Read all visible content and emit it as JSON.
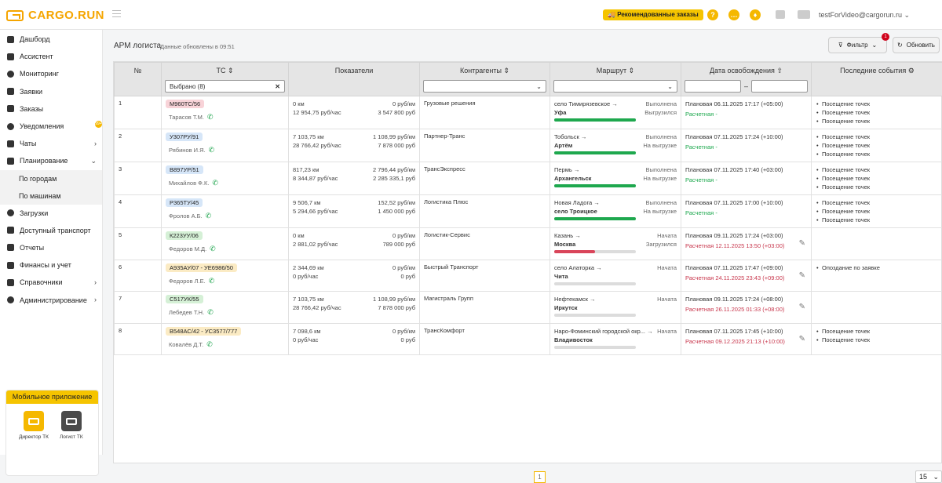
{
  "app": {
    "brand": "CARGO.RUN",
    "recommended_label": "Рекомендованные заказы",
    "user_email": "testForVideo@cargorun.ru"
  },
  "sidebar": {
    "items": [
      {
        "label": "Дашборд",
        "icon": "dashboard-icon"
      },
      {
        "label": "Ассистент",
        "icon": "chart-icon"
      },
      {
        "label": "Мониторинг",
        "icon": "location-pin-icon"
      },
      {
        "label": "Заявки",
        "icon": "truck-icon"
      },
      {
        "label": "Заказы",
        "icon": "ruble-icon"
      },
      {
        "label": "Уведомления",
        "icon": "bell-icon",
        "badge": "99+"
      },
      {
        "label": "Чаты",
        "icon": "chat-icon"
      },
      {
        "label": "Планирование",
        "icon": "calendar-icon"
      }
    ],
    "planning_sub": [
      "По городам",
      "По машинам"
    ],
    "items2": [
      {
        "label": "Загрузки",
        "icon": "cycle-icon"
      },
      {
        "label": "Доступный транспорт",
        "icon": "truck-icon"
      },
      {
        "label": "Отчеты",
        "icon": "report-icon"
      },
      {
        "label": "Финансы и учет",
        "icon": "finance-icon"
      },
      {
        "label": "Справочники",
        "icon": "list-icon"
      },
      {
        "label": "Администрирование",
        "icon": "gear-icon"
      }
    ],
    "mobile_title": "Мобильное приложение",
    "apps": [
      "Директор ТК",
      "Логист ТК"
    ]
  },
  "page": {
    "title": "АРМ логиста",
    "updated": "Данные обновлены в 09:51",
    "filter_label": "Фильтр",
    "filter_badge": "1",
    "refresh_label": "Обновить",
    "current_page": "1",
    "page_size": "15"
  },
  "columns": {
    "num": "№",
    "vehicle": "ТС",
    "metrics": "Показатели",
    "contractors": "Контрагенты",
    "route": "Маршрут",
    "release": "Дата освобождения",
    "events": "Последние события",
    "vehicle_filter": "Выбрано (8)"
  },
  "colors": {
    "accent": "#f5b800",
    "green_bar": "#1ea84e",
    "red_bar": "#d9455a",
    "pink_plate": "#f8d3d8",
    "blue_plate": "#d6e6f8",
    "green_plate": "#d5f0d6",
    "yellow_plate": "#fbebc4"
  },
  "rows": [
    {
      "n": "1",
      "plate": "М960ТС/56",
      "plate_color": "#f8d3d8",
      "driver": "Тарасов Т.М.",
      "km": "0 км",
      "rate": "0 руб/км",
      "perh": "12 954,75 руб/час",
      "sum": "3 547 800 руб",
      "contractor": "Грузовые решения",
      "from": "село Тимирязевское",
      "to": "Уфа",
      "st1": "Выполнена",
      "st2": "Выгрузился",
      "progress": 1,
      "bar": "#1ea84e",
      "plan": "Плановая 06.11.2025 17:17 (+05:00)",
      "calc": "Расчетная -",
      "calc_color": "#1ea84e",
      "edit": false,
      "events": [
        "Посещение точек",
        "Посещение точек",
        "Посещение точек"
      ]
    },
    {
      "n": "2",
      "plate": "У307РУ/91",
      "plate_color": "#d6e6f8",
      "driver": "Рябинов И.Я.",
      "km": "7 103,75 км",
      "rate": "1 108,99 руб/км",
      "perh": "28 766,42 руб/час",
      "sum": "7 878 000 руб",
      "contractor": "Партнер-Транс",
      "from": "Тобольск",
      "to": "Артём",
      "st1": "Выполнена",
      "st2": "На выгрузке",
      "progress": 1,
      "bar": "#1ea84e",
      "plan": "Плановая 07.11.2025 17:24 (+10:00)",
      "calc": "Расчетная -",
      "calc_color": "#1ea84e",
      "edit": false,
      "events": [
        "Посещение точек",
        "Посещение точек",
        "Посещение точек"
      ]
    },
    {
      "n": "3",
      "plate": "В897УР/51",
      "plate_color": "#d6e6f8",
      "driver": "Михайлов Ф.К.",
      "km": "817,23 км",
      "rate": "2 796,44 руб/км",
      "perh": "8 344,87 руб/час",
      "sum": "2 285 335,1 руб",
      "contractor": "ТрансЭкспресс",
      "from": "Пермь",
      "to": "Архангельск",
      "st1": "Выполнена",
      "st2": "На выгрузке",
      "progress": 1,
      "bar": "#1ea84e",
      "plan": "Плановая 07.11.2025 17:40 (+03:00)",
      "calc": "Расчетная -",
      "calc_color": "#1ea84e",
      "edit": false,
      "events": [
        "Посещение точек",
        "Посещение точек",
        "Посещение точек"
      ]
    },
    {
      "n": "4",
      "plate": "Р365ТУ/45",
      "plate_color": "#d6e6f8",
      "driver": "Фролов А.Б.",
      "km": "9 506,7 км",
      "rate": "152,52 руб/км",
      "perh": "5 294,66 руб/час",
      "sum": "1 450 000 руб",
      "contractor": "Логистика Плюс",
      "from": "Новая Ладога",
      "to": "село Троицкое",
      "st1": "Выполнена",
      "st2": "На выгрузке",
      "progress": 1,
      "bar": "#1ea84e",
      "plan": "Плановая 07.11.2025 17:00 (+10:00)",
      "calc": "Расчетная -",
      "calc_color": "#1ea84e",
      "edit": false,
      "events": [
        "Посещение точек",
        "Посещение точек",
        "Посещение точек"
      ]
    },
    {
      "n": "5",
      "plate": "К223УУ/06",
      "plate_color": "#d5f0d6",
      "driver": "Федоров М.Д.",
      "km": "0 км",
      "rate": "0 руб/км",
      "perh": "2 881,02 руб/час",
      "sum": "789 000 руб",
      "contractor": "Логистик-Сервис",
      "from": "Казань",
      "to": "Москва",
      "st1": "Начата",
      "st2": "Загрузился",
      "progress": 0.5,
      "bar": "#d9455a",
      "plan": "Плановая 09.11.2025 17:24 (+03:00)",
      "calc": "Расчетная 12.11.2025 13:50 (+03:00)",
      "calc_color": "#c8374d",
      "edit": true,
      "events": []
    },
    {
      "n": "6",
      "plate": "А935АУ/07 - УЕ6986/50",
      "plate_color": "#fbebc4",
      "driver": "Федоров Л.Е.",
      "km": "2 344,69 км",
      "rate": "0 руб/км",
      "perh": "0 руб/час",
      "sum": "0 руб",
      "contractor": "Быстрый Транспорт",
      "from": "село Алаторка",
      "to": "Чита",
      "st1": "Начата",
      "st2": "",
      "progress": 0,
      "bar": "#dcdcdc",
      "plan": "Плановая 07.11.2025 17:47 (+09:00)",
      "calc": "Расчетная 24.11.2025 23:43 (+09:00)",
      "calc_color": "#c8374d",
      "edit": true,
      "events": [
        "Опоздание по заявке"
      ]
    },
    {
      "n": "7",
      "plate": "С517УК/55",
      "plate_color": "#d5f0d6",
      "driver": "Лебедев Т.Н.",
      "km": "7 103,75 км",
      "rate": "1 108,99 руб/км",
      "perh": "28 766,42 руб/час",
      "sum": "7 878 000 руб",
      "contractor": "Магистраль Групп",
      "from": "Нефтекамск",
      "to": "Иркутск",
      "st1": "Начата",
      "st2": "",
      "progress": 0,
      "bar": "#dcdcdc",
      "plan": "Плановая 09.11.2025 17:24 (+08:00)",
      "calc": "Расчетная 26.11.2025 01:33 (+08:00)",
      "calc_color": "#c8374d",
      "edit": true,
      "events": []
    },
    {
      "n": "8",
      "plate": "В548АС/42 - УС3577/777",
      "plate_color": "#fbebc4",
      "driver": "Ковалёв Д.Т.",
      "km": "7 098,6 км",
      "rate": "0 руб/км",
      "perh": "0 руб/час",
      "sum": "0 руб",
      "contractor": "ТрансКомфорт",
      "from": "Наро-Фоминский городской окр...",
      "to": "Владивосток",
      "st1": "Начата",
      "st2": "",
      "progress": 0,
      "bar": "#dcdcdc",
      "plan": "Плановая 07.11.2025 17:45 (+10:00)",
      "calc": "Расчетная 09.12.2025 21:13 (+10:00)",
      "calc_color": "#c8374d",
      "edit": true,
      "events": [
        "Посещение точек",
        "Посещение точек"
      ]
    }
  ]
}
